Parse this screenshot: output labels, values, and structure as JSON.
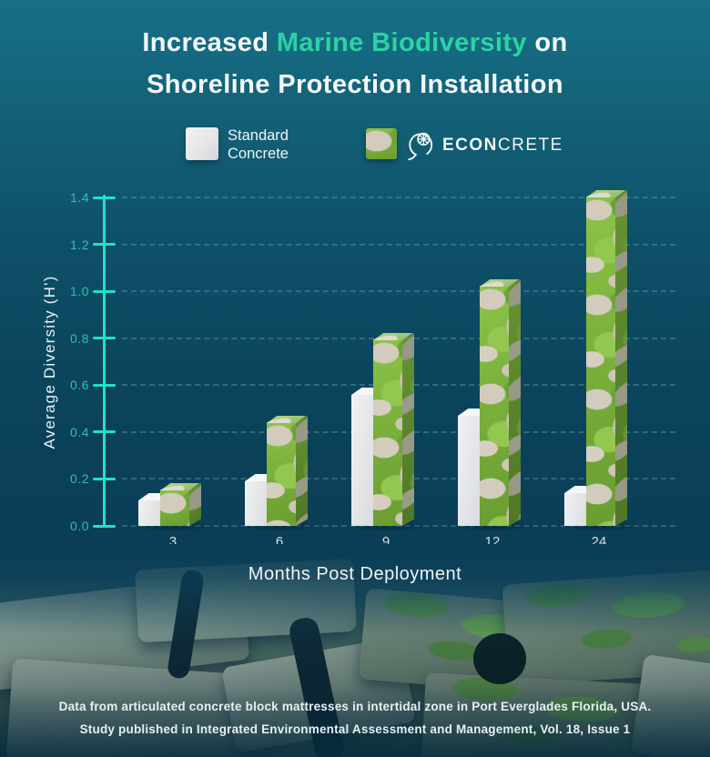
{
  "title": {
    "line1_prefix": "Increased ",
    "line1_highlight": "Marine Biodiversity",
    "line1_suffix": " on",
    "line2": "Shoreline Protection Installation"
  },
  "legend": {
    "standard_line1": "Standard",
    "standard_line2": "Concrete",
    "brand_bold": "ECON",
    "brand_light": "CRETE"
  },
  "chart_data": {
    "type": "bar",
    "title": "Increased Marine Biodiversity on Shoreline Protection Installation",
    "categories": [
      "3",
      "6",
      "9",
      "12",
      "24"
    ],
    "series": [
      {
        "name": "Standard Concrete",
        "values": [
          0.11,
          0.19,
          0.56,
          0.47,
          0.14
        ],
        "color": "#e3e5e8"
      },
      {
        "name": "ECOncrete",
        "values": [
          0.15,
          0.44,
          0.79,
          1.02,
          1.4
        ],
        "color": "#7eb83e"
      }
    ],
    "xlabel": "Months Post Deployment",
    "ylabel": "Average Diversity (H')",
    "ylim": [
      0,
      1.4
    ],
    "ytick_step": 0.2,
    "yticks": [
      "0.0",
      "0.2",
      "0.4",
      "0.6",
      "0.8",
      "1.0",
      "1.2",
      "1.4"
    ],
    "grid": true,
    "legend_position": "top"
  },
  "footer": {
    "line1": "Data from articulated concrete block mattresses in intertidal zone in Port Everglades Florida, USA.",
    "line2": "Study published in Integrated Environmental Assessment and Management, Vol. 18, Issue 1"
  },
  "colors": {
    "background_top": "#177088",
    "accent": "#2bd3a3",
    "axis": "#1fe2c6",
    "tick_label": "#35bdb2",
    "standard_bar": "#e3e5e8",
    "econcrete_moss": "#7eb83e"
  }
}
